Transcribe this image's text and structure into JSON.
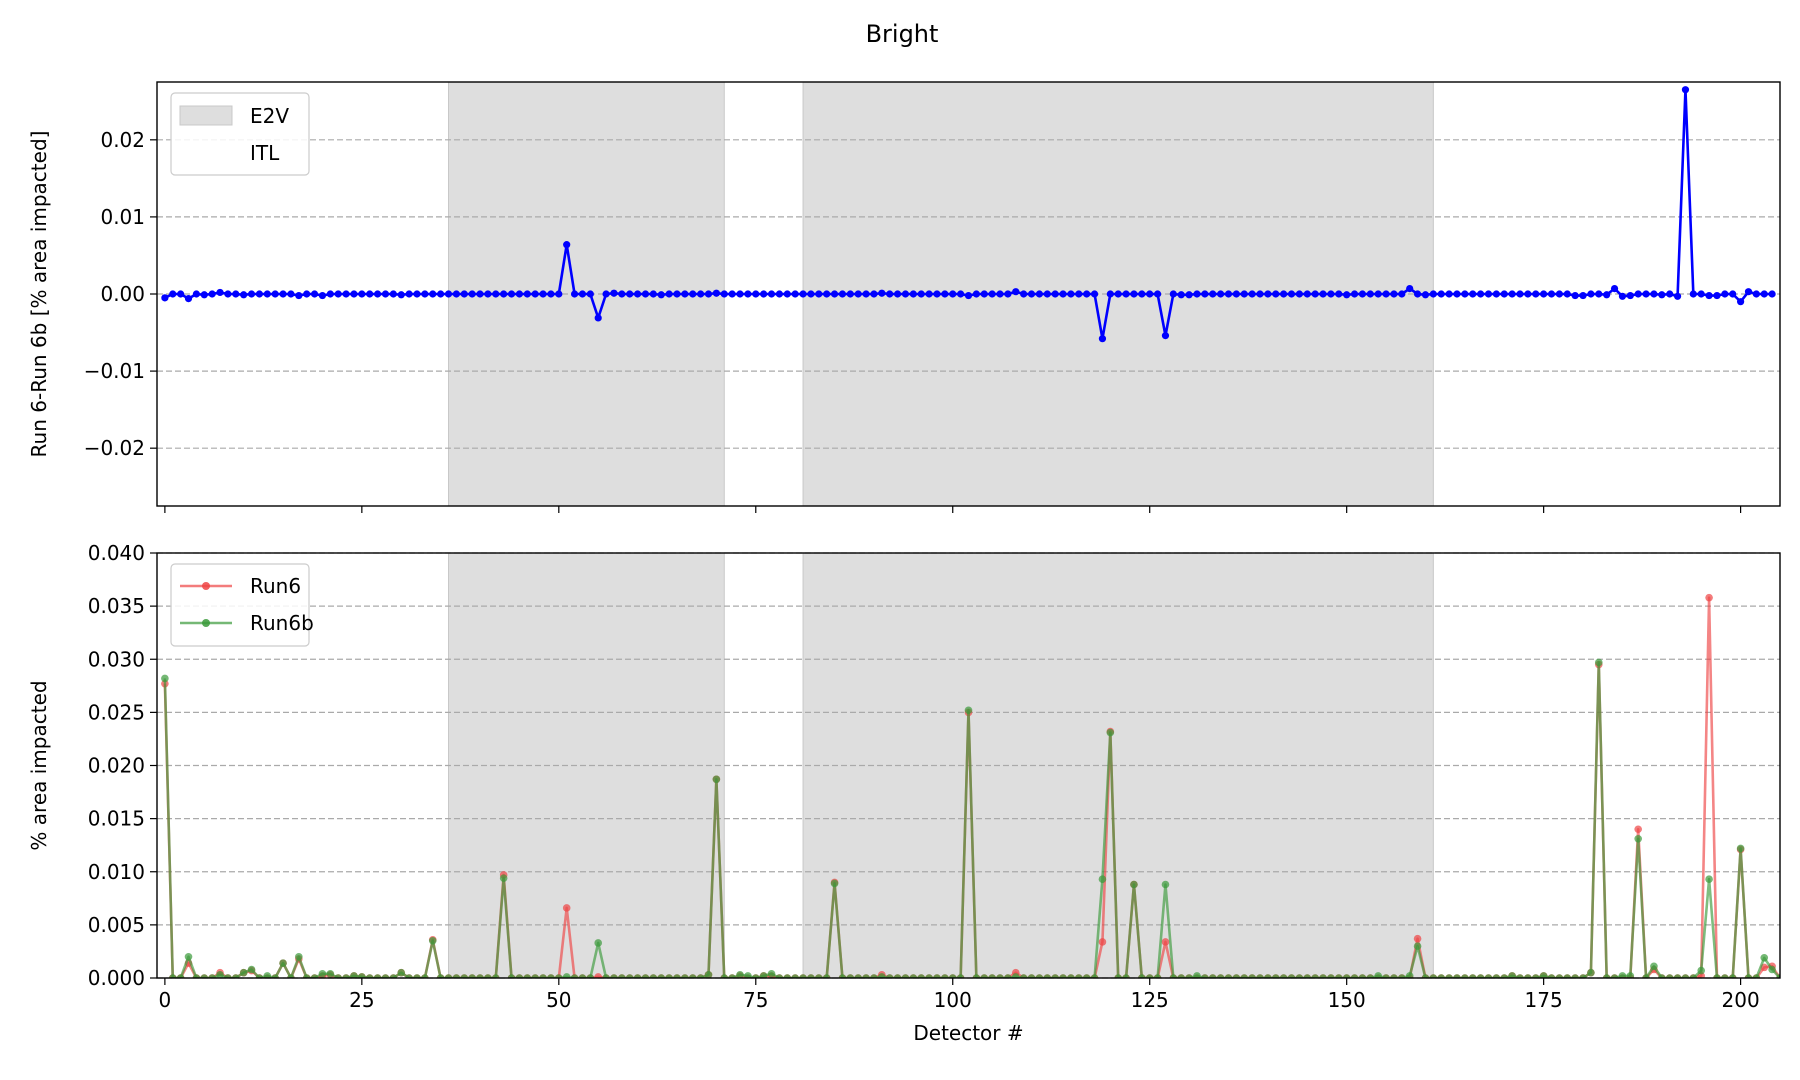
{
  "figure": {
    "title": "Bright"
  },
  "colors": {
    "diff": "#0000ff",
    "run6": "#ee4444",
    "run6b": "#3a9a3a",
    "shade": "#dedede",
    "grid": "#aaaaaa"
  },
  "chart_data": [
    {
      "type": "line",
      "panel": "top",
      "title": "",
      "xlabel": "",
      "ylabel": "Run 6-Run 6b [% area impacted]",
      "xlim": [
        -1,
        205
      ],
      "ylim": [
        -0.0275,
        0.0275
      ],
      "yticks": [
        -0.02,
        -0.01,
        0.0,
        0.01,
        0.02
      ],
      "ytick_labels": [
        "−0.02",
        "−0.01",
        "0.00",
        "0.01",
        "0.02"
      ],
      "xticks": [
        0,
        25,
        50,
        75,
        100,
        125,
        150,
        175,
        200
      ],
      "grid": "y-dashed",
      "legend_position": "top-left",
      "legend": [
        {
          "label": "E2V",
          "type": "patch"
        },
        {
          "label": "ITL",
          "type": "patch-white"
        }
      ],
      "shaded_regions": [
        [
          36,
          71
        ],
        [
          81,
          161
        ]
      ],
      "series": [
        {
          "name": "",
          "color": "#0000ff",
          "x_start": 0,
          "values": [
            -0.0005,
            0.0,
            0.0,
            -0.0006,
            0.0,
            -0.0001,
            0.0,
            0.0002,
            0.0,
            0.0,
            -0.0001,
            0.0,
            0.0,
            0.0,
            0.0,
            0.0,
            0.0,
            -0.0002,
            0.0,
            0.0,
            -0.0002,
            0.0,
            0.0,
            0.0,
            0.0,
            0.0,
            0.0,
            0.0,
            0.0,
            0.0,
            -0.0001,
            0.0,
            0.0,
            0.0,
            0.0,
            0.0,
            0.0,
            0.0,
            0.0,
            0.0,
            0.0,
            0.0,
            0.0,
            0.0,
            0.0,
            0.0,
            0.0,
            0.0,
            0.0,
            0.0,
            0.0,
            0.0064,
            0.0,
            0.0,
            0.0,
            -0.0031,
            0.0,
            0.0001,
            0.0,
            0.0,
            0.0,
            0.0,
            0.0,
            -0.0001,
            0.0,
            0.0,
            0.0,
            0.0,
            0.0,
            0.0,
            0.0001,
            0.0,
            0.0,
            0.0,
            0.0,
            0.0,
            0.0,
            0.0,
            0.0,
            0.0,
            0.0,
            0.0,
            0.0,
            0.0,
            0.0,
            0.0,
            0.0,
            0.0,
            0.0,
            0.0,
            0.0,
            0.0001,
            0.0,
            0.0,
            0.0,
            0.0,
            0.0,
            0.0,
            0.0,
            0.0,
            0.0,
            0.0,
            -0.0002,
            0.0,
            0.0,
            0.0,
            0.0,
            0.0,
            0.0003,
            0.0,
            0.0,
            0.0,
            0.0,
            0.0,
            0.0,
            0.0,
            0.0,
            0.0,
            0.0,
            -0.0058,
            0.0,
            0.0,
            0.0,
            0.0,
            0.0,
            0.0,
            0.0,
            -0.0054,
            0.0,
            -0.0001,
            -0.0001,
            0.0,
            0.0,
            0.0,
            0.0,
            0.0,
            0.0,
            0.0,
            0.0,
            0.0,
            0.0,
            0.0,
            0.0,
            0.0,
            0.0,
            0.0,
            0.0,
            0.0,
            0.0,
            0.0,
            -0.0001,
            0.0,
            0.0,
            0.0,
            0.0,
            0.0,
            0.0,
            0.0,
            0.0007,
            0.0,
            -0.0001,
            0.0,
            0.0,
            0.0,
            0.0,
            0.0,
            0.0,
            0.0,
            0.0,
            0.0,
            0.0,
            0.0,
            0.0,
            0.0,
            0.0,
            0.0,
            0.0,
            0.0,
            0.0,
            -0.0002,
            -0.0002,
            0.0,
            0.0,
            -0.0001,
            0.0007,
            -0.0003,
            -0.0002,
            0.0,
            0.0,
            0.0,
            -0.0001,
            0.0,
            -0.0003,
            0.0265,
            0.0,
            0.0,
            -0.0002,
            -0.0002,
            0.0,
            0.0,
            -0.001,
            0.0003,
            0.0,
            0.0,
            0.0
          ]
        }
      ]
    },
    {
      "type": "line",
      "panel": "bottom",
      "title": "",
      "xlabel": "Detector #",
      "ylabel": "% area impacted",
      "xlim": [
        -1,
        205
      ],
      "ylim": [
        0.0,
        0.04
      ],
      "yticks": [
        0.0,
        0.005,
        0.01,
        0.015,
        0.02,
        0.025,
        0.03,
        0.035,
        0.04
      ],
      "ytick_labels": [
        "0.000",
        "0.005",
        "0.010",
        "0.015",
        "0.020",
        "0.025",
        "0.030",
        "0.035",
        "0.040"
      ],
      "xticks": [
        0,
        25,
        50,
        75,
        100,
        125,
        150,
        175,
        200
      ],
      "xtick_labels": [
        "0",
        "25",
        "50",
        "75",
        "100",
        "125",
        "150",
        "175",
        "200"
      ],
      "grid": "y-dashed",
      "legend_position": "top-left",
      "shaded_regions": [
        [
          36,
          71
        ],
        [
          81,
          161
        ]
      ],
      "series": [
        {
          "name": "Run6",
          "color": "#ee4444",
          "x_start": 0,
          "values": [
            0.0277,
            0.0,
            0.0,
            0.0014,
            0.0,
            0.0,
            0.0,
            0.0005,
            0.0,
            0.0,
            0.0005,
            0.0007,
            0.0,
            0.0,
            0.0,
            0.0014,
            0.0,
            0.0018,
            0.0,
            0.0,
            0.0002,
            0.0003,
            0.0,
            0.0,
            0.0002,
            0.0001,
            0.0,
            0.0,
            0.0,
            0.0,
            0.0005,
            0.0,
            0.0,
            0.0,
            0.0036,
            0.0,
            0.0,
            0.0,
            0.0,
            0.0,
            0.0,
            0.0,
            0.0,
            0.0097,
            0.0,
            0.0,
            0.0,
            0.0,
            0.0,
            0.0,
            0.0,
            0.0066,
            0.0,
            0.0,
            0.0,
            0.0001,
            0.0,
            0.0,
            0.0,
            0.0,
            0.0,
            0.0,
            0.0,
            0.0,
            0.0,
            0.0,
            0.0,
            0.0,
            0.0,
            0.0003,
            0.0187,
            0.0,
            0.0,
            0.0002,
            0.0,
            0.0,
            0.0002,
            0.0002,
            0.0,
            0.0,
            0.0,
            0.0,
            0.0,
            0.0,
            0.0,
            0.009,
            0.0,
            0.0,
            0.0,
            0.0,
            0.0,
            0.0003,
            0.0,
            0.0,
            0.0,
            0.0,
            0.0,
            0.0,
            0.0,
            0.0,
            0.0,
            0.0,
            0.025,
            0.0,
            0.0,
            0.0,
            0.0,
            0.0,
            0.0005,
            0.0,
            0.0,
            0.0,
            0.0,
            0.0,
            0.0,
            0.0,
            0.0,
            0.0,
            0.0,
            0.0034,
            0.0232,
            0.0,
            0.0,
            0.0088,
            0.0,
            0.0,
            0.0,
            0.0034,
            0.0,
            0.0,
            0.0,
            0.0,
            0.0,
            0.0,
            0.0,
            0.0,
            0.0,
            0.0,
            0.0,
            0.0,
            0.0,
            0.0,
            0.0,
            0.0,
            0.0,
            0.0,
            0.0,
            0.0,
            0.0,
            0.0,
            0.0,
            0.0,
            0.0,
            0.0,
            0.0,
            0.0,
            0.0,
            0.0,
            0.0,
            0.0037,
            0.0,
            0.0,
            0.0,
            0.0,
            0.0,
            0.0,
            0.0,
            0.0,
            0.0,
            0.0,
            0.0,
            0.0002,
            0.0,
            0.0,
            0.0,
            0.0002,
            0.0,
            0.0,
            0.0,
            0.0,
            0.0,
            0.0005,
            0.0295,
            0.0,
            0.0,
            0.0,
            0.0,
            0.014,
            0.0,
            0.0008,
            0.0,
            0.0,
            0.0,
            0.0,
            0.0,
            0.0002,
            0.0358,
            0.0,
            0.0,
            0.0,
            0.0121,
            0.0,
            0.0,
            0.001,
            0.0011,
            0.0,
            0.0
          ]
        },
        {
          "name": "Run6b",
          "color": "#3a9a3a",
          "x_start": 0,
          "values": [
            0.0282,
            0.0,
            0.0,
            0.002,
            0.0,
            0.0,
            0.0,
            0.0003,
            0.0,
            0.0,
            0.0005,
            0.0008,
            0.0,
            0.0002,
            0.0,
            0.0014,
            0.0,
            0.002,
            0.0,
            0.0,
            0.0004,
            0.0004,
            0.0,
            0.0,
            0.0002,
            0.0001,
            0.0,
            0.0,
            0.0,
            0.0,
            0.0005,
            0.0,
            0.0,
            0.0,
            0.0035,
            0.0,
            0.0,
            0.0,
            0.0,
            0.0,
            0.0,
            0.0,
            0.0,
            0.0094,
            0.0,
            0.0,
            0.0,
            0.0,
            0.0,
            0.0,
            0.0,
            0.0001,
            0.0,
            0.0,
            0.0,
            0.0033,
            0.0,
            0.0,
            0.0,
            0.0,
            0.0,
            0.0,
            0.0,
            0.0,
            0.0,
            0.0,
            0.0,
            0.0,
            0.0,
            0.0003,
            0.0187,
            0.0,
            0.0,
            0.0003,
            0.0002,
            0.0,
            0.0002,
            0.0004,
            0.0,
            0.0,
            0.0,
            0.0,
            0.0,
            0.0,
            0.0,
            0.0089,
            0.0,
            0.0,
            0.0,
            0.0,
            0.0,
            0.0001,
            0.0,
            0.0,
            0.0,
            0.0,
            0.0,
            0.0,
            0.0,
            0.0,
            0.0,
            0.0,
            0.0252,
            0.0,
            0.0,
            0.0,
            0.0,
            0.0,
            0.0001,
            0.0,
            0.0,
            0.0,
            0.0,
            0.0,
            0.0,
            0.0,
            0.0,
            0.0,
            0.0,
            0.0093,
            0.0231,
            0.0,
            0.0,
            0.0088,
            0.0,
            0.0,
            0.0,
            0.0088,
            0.0,
            0.0,
            0.0,
            0.0002,
            0.0,
            0.0,
            0.0,
            0.0,
            0.0,
            0.0,
            0.0,
            0.0,
            0.0,
            0.0,
            0.0,
            0.0,
            0.0,
            0.0,
            0.0,
            0.0,
            0.0,
            0.0,
            0.0,
            0.0,
            0.0,
            0.0,
            0.0002,
            0.0,
            0.0,
            0.0,
            0.0002,
            0.003,
            0.0,
            0.0,
            0.0,
            0.0,
            0.0,
            0.0,
            0.0,
            0.0,
            0.0,
            0.0,
            0.0,
            0.0002,
            0.0,
            0.0,
            0.0,
            0.0002,
            0.0,
            0.0,
            0.0,
            0.0,
            0.0,
            0.0005,
            0.0297,
            0.0,
            0.0,
            0.0002,
            0.0002,
            0.0131,
            0.0,
            0.0011,
            0.0,
            0.0,
            0.0,
            0.0,
            0.0,
            0.0007,
            0.0093,
            0.0,
            0.0,
            0.0,
            0.0122,
            0.0,
            0.0,
            0.0019,
            0.0008,
            0.0,
            0.0
          ]
        }
      ]
    }
  ]
}
